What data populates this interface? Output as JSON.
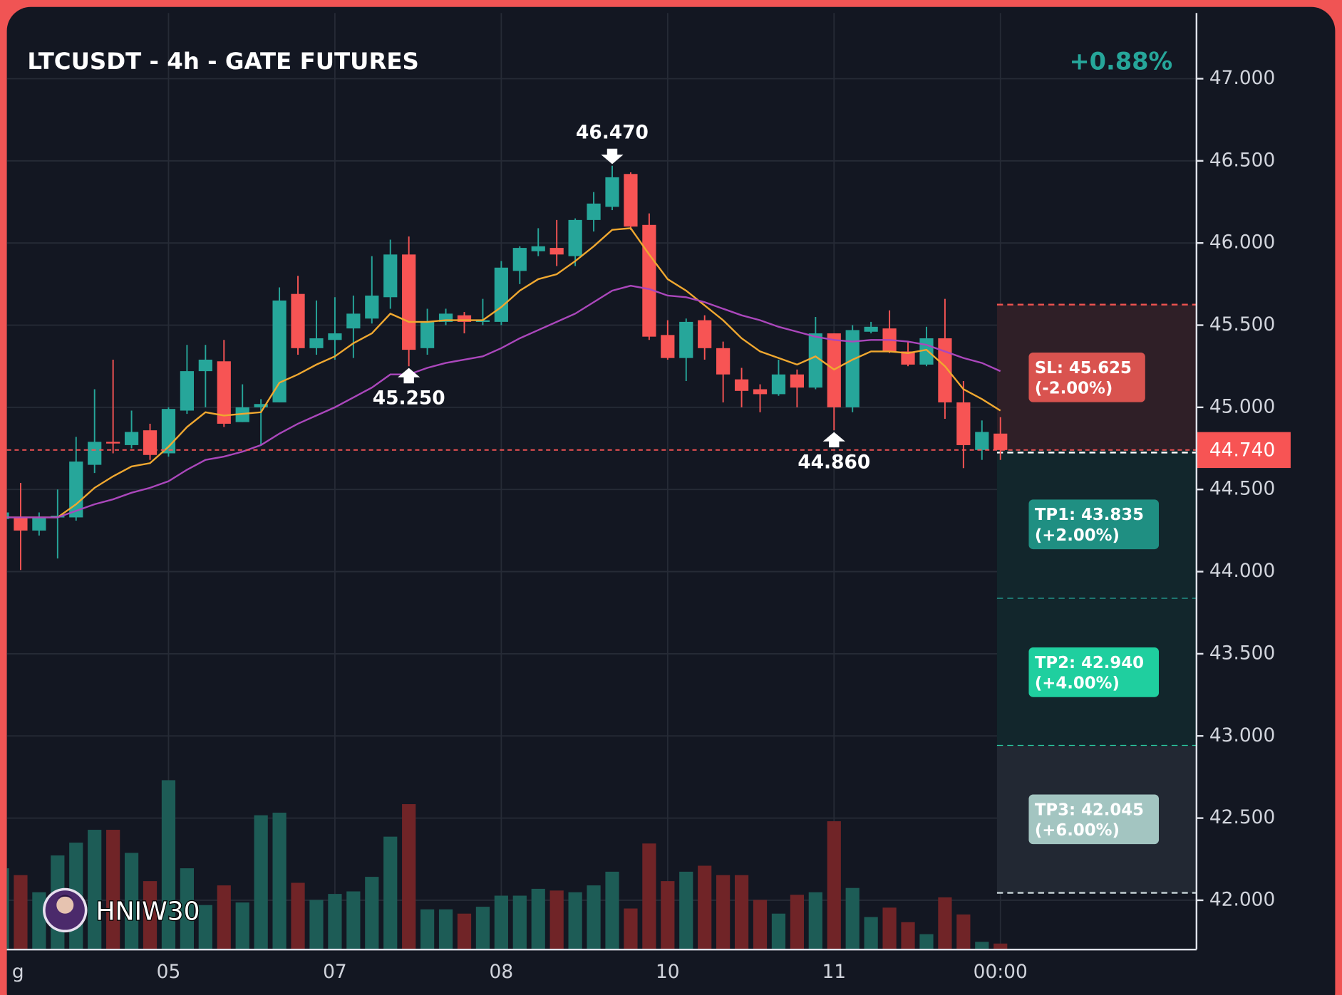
{
  "chart_data": {
    "type": "candlestick",
    "title": "LTCUSDT - 4h - GATE FUTURES",
    "change": "+0.88%",
    "watermark": "HNIW30",
    "categories": [
      "g",
      null,
      null,
      null,
      null,
      null,
      null,
      null,
      null,
      "05",
      null,
      null,
      null,
      null,
      null,
      null,
      null,
      null,
      "07",
      null,
      null,
      null,
      null,
      null,
      null,
      null,
      null,
      "08",
      null,
      null,
      null,
      null,
      null,
      null,
      null,
      null,
      "10",
      null,
      null,
      null,
      null,
      null,
      null,
      null,
      null,
      "11",
      null,
      null,
      null,
      null,
      null,
      null,
      null,
      null,
      "00:00"
    ],
    "open": [
      44.32,
      44.33,
      44.25,
      44.33,
      44.33,
      44.65,
      44.79,
      44.77,
      44.86,
      44.72,
      44.98,
      45.22,
      45.28,
      44.91,
      45.0,
      45.03,
      45.69,
      45.36,
      45.41,
      45.48,
      45.54,
      45.67,
      45.93,
      45.36,
      45.52,
      45.56,
      45.52,
      45.52,
      45.83,
      45.95,
      45.97,
      45.92,
      46.14,
      46.22,
      46.42,
      46.11,
      45.44,
      45.3,
      45.53,
      45.36,
      45.17,
      45.11,
      45.08,
      45.2,
      45.12,
      45.45,
      45.0,
      45.46,
      45.48,
      45.34,
      45.26,
      45.42,
      45.03,
      44.74,
      44.84
    ],
    "high": [
      44.38,
      44.54,
      44.36,
      44.5,
      44.82,
      45.11,
      45.29,
      44.98,
      44.9,
      45.0,
      45.38,
      45.38,
      45.41,
      45.14,
      45.05,
      45.73,
      45.8,
      45.65,
      45.67,
      45.68,
      45.92,
      46.02,
      46.04,
      45.6,
      45.6,
      45.58,
      45.66,
      45.89,
      45.98,
      46.09,
      46.14,
      46.15,
      46.31,
      46.47,
      46.43,
      46.18,
      45.53,
      45.54,
      45.56,
      45.4,
      45.24,
      45.14,
      45.29,
      45.23,
      45.55,
      45.45,
      45.5,
      45.52,
      45.59,
      45.4,
      45.49,
      45.66,
      45.16,
      44.92,
      44.94
    ],
    "low": [
      44.28,
      44.01,
      44.22,
      44.08,
      44.31,
      44.6,
      44.72,
      44.75,
      44.68,
      44.7,
      44.96,
      45.0,
      44.88,
      44.91,
      44.77,
      45.03,
      45.32,
      45.32,
      45.29,
      45.3,
      45.51,
      45.6,
      45.25,
      45.32,
      45.5,
      45.45,
      45.5,
      45.5,
      45.75,
      45.92,
      45.86,
      45.86,
      46.07,
      46.2,
      46.08,
      45.41,
      45.29,
      45.16,
      45.29,
      45.03,
      45.0,
      44.97,
      45.07,
      45.0,
      45.11,
      44.86,
      44.97,
      45.45,
      45.33,
      45.25,
      45.25,
      44.93,
      44.63,
      44.68,
      44.68
    ],
    "close": [
      44.36,
      44.25,
      44.33,
      44.34,
      44.67,
      44.79,
      44.78,
      44.85,
      44.71,
      44.99,
      45.22,
      45.29,
      44.9,
      45.0,
      45.02,
      45.65,
      45.36,
      45.42,
      45.45,
      45.57,
      45.68,
      45.93,
      45.35,
      45.52,
      45.57,
      45.52,
      45.53,
      45.85,
      45.97,
      45.98,
      45.93,
      46.14,
      46.24,
      46.4,
      46.1,
      45.43,
      45.3,
      45.52,
      45.36,
      45.2,
      45.1,
      45.08,
      45.2,
      45.12,
      45.45,
      45.0,
      45.47,
      45.49,
      45.34,
      45.26,
      45.42,
      45.03,
      44.77,
      44.85,
      44.74
    ],
    "volume": [
      95,
      87,
      67,
      110,
      125,
      140,
      140,
      113,
      80,
      198,
      95,
      52,
      75,
      55,
      157,
      160,
      78,
      58,
      65,
      68,
      85,
      132,
      170,
      47,
      47,
      42,
      50,
      63,
      63,
      71,
      69,
      67,
      75,
      91,
      48,
      124,
      80,
      91,
      98,
      87,
      87,
      58,
      42,
      64,
      67,
      150,
      72,
      38,
      49,
      32,
      18,
      61,
      41,
      9,
      7
    ],
    "volume_lim": [
      0,
      1095
    ],
    "up_color": "#26a69a",
    "down_color": "#f75454",
    "volume_up_color": "#1d5c56",
    "volume_down_color": "#702427",
    "series": [
      {
        "color": "#f0a830",
        "values": [
          44.33,
          44.33,
          44.33,
          44.33,
          44.41,
          44.51,
          44.58,
          44.64,
          44.66,
          44.76,
          44.88,
          44.97,
          44.95,
          44.96,
          44.97,
          45.15,
          45.2,
          45.26,
          45.31,
          45.39,
          45.45,
          45.57,
          45.52,
          45.52,
          45.53,
          45.53,
          45.53,
          45.61,
          45.71,
          45.78,
          45.81,
          45.89,
          45.98,
          46.08,
          46.09,
          45.93,
          45.78,
          45.71,
          45.62,
          45.53,
          45.42,
          45.34,
          45.3,
          45.26,
          45.31,
          45.23,
          45.29,
          45.34,
          45.34,
          45.33,
          45.35,
          45.25,
          45.11,
          45.05,
          44.98
        ]
      },
      {
        "color": "#ab47bc",
        "values": [
          44.33,
          44.33,
          44.33,
          44.33,
          44.37,
          44.41,
          44.44,
          44.48,
          44.51,
          44.55,
          44.62,
          44.68,
          44.7,
          44.73,
          44.77,
          44.84,
          44.9,
          44.95,
          45.0,
          45.06,
          45.12,
          45.2,
          45.2,
          45.24,
          45.27,
          45.29,
          45.31,
          45.36,
          45.42,
          45.47,
          45.52,
          45.57,
          45.64,
          45.71,
          45.74,
          45.72,
          45.68,
          45.67,
          45.64,
          45.6,
          45.56,
          45.53,
          45.49,
          45.46,
          45.43,
          45.41,
          45.4,
          45.41,
          45.41,
          45.4,
          45.38,
          45.34,
          45.3,
          45.27,
          45.22
        ]
      }
    ],
    "ylim": [
      41.7,
      47.4
    ],
    "yticks": [
      {
        "value": 42,
        "label": "42.000"
      },
      {
        "value": 42.5,
        "label": "42.500"
      },
      {
        "value": 43,
        "label": "43.000"
      },
      {
        "value": 43.5,
        "label": "43.500"
      },
      {
        "value": 44,
        "label": "44.000"
      },
      {
        "value": 44.5,
        "label": "44.500"
      },
      {
        "value": 45,
        "label": "45.000"
      },
      {
        "value": 45.5,
        "label": "45.500"
      },
      {
        "value": 46,
        "label": "46.000"
      },
      {
        "value": 46.5,
        "label": "46.500"
      },
      {
        "value": 47,
        "label": "47.000"
      }
    ],
    "grid": true,
    "last_price": {
      "value": 44.74,
      "label": "44.740"
    },
    "annotations": [
      {
        "kind": "high",
        "index": 33,
        "value": 46.47,
        "text": "46.470"
      },
      {
        "kind": "low",
        "index": 22,
        "value": 45.25,
        "text": "45.250"
      },
      {
        "kind": "low",
        "index": 45,
        "value": 44.86,
        "text": "44.860"
      }
    ],
    "levels": [
      {
        "label": "SL: 45.625",
        "note": "(-2.00%)",
        "value": 45.625,
        "color": "#d9534f",
        "line_color": "#ef5350",
        "zone_color": "#2f1f27"
      },
      {
        "label": "TP1: 43.835",
        "note": "(+2.00%)",
        "value": 43.835,
        "color": "#1f8f82",
        "line_color": "#26a69a",
        "zone_color": "#12262c"
      },
      {
        "label": "TP2: 42.940",
        "note": "(+4.00%)",
        "value": 42.94,
        "color": "#1fcf9f",
        "line_color": "#2bd1a5",
        "zone_color": "#12262c"
      },
      {
        "label": "TP3: 42.045",
        "note": "(+6.00%)",
        "value": 42.045,
        "color": "#a3c5c1",
        "line_color": "#c8d4d8",
        "zone_color": "#222833"
      }
    ]
  }
}
